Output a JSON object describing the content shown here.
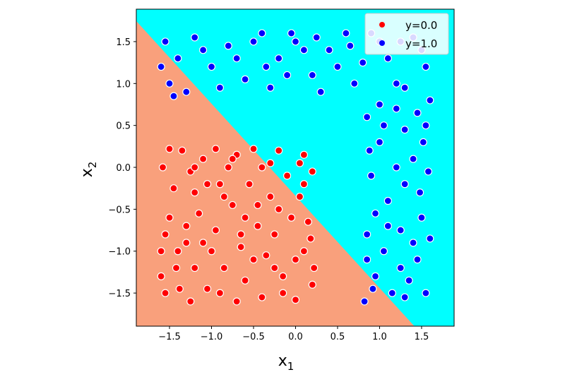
{
  "chart_data": {
    "type": "scatter",
    "title": "",
    "xlabel": "x",
    "xlabel_sub": "1",
    "ylabel": "x",
    "ylabel_sub": "2",
    "xlim": [
      -1.895,
      1.887
    ],
    "ylim": [
      -1.895,
      1.887
    ],
    "xticks": [
      -1.5,
      -1.0,
      -0.5,
      0.0,
      0.5,
      1.0,
      1.5
    ],
    "yticks": [
      -1.5,
      -1.0,
      -0.5,
      0.0,
      0.5,
      1.0,
      1.5
    ],
    "xtick_labels": [
      "−1.5",
      "−1.0",
      "−0.5",
      "0.0",
      "0.5",
      "1.0",
      "1.5"
    ],
    "ytick_labels": [
      "−1.5",
      "−1.0",
      "−0.5",
      "0.0",
      "0.5",
      "1.0",
      "1.5"
    ],
    "decision_boundary": {
      "slope": -1.1,
      "intercept": -0.34,
      "below_color": "#f9a07c",
      "above_color": "#00ffff"
    },
    "legend_position": "top-right",
    "series": [
      {
        "name": "y=0.0",
        "color": "#ff0000",
        "points": [
          [
            -1.55,
            -1.5
          ],
          [
            -1.42,
            -1.2
          ],
          [
            -1.3,
            -0.9
          ],
          [
            -1.5,
            -0.6
          ],
          [
            -1.2,
            -0.3
          ],
          [
            -1.58,
            0.0
          ],
          [
            -1.35,
            0.2
          ],
          [
            -1.1,
            0.1
          ],
          [
            -0.9,
            -0.2
          ],
          [
            -0.7,
            0.15
          ],
          [
            -0.5,
            0.22
          ],
          [
            -0.3,
            0.05
          ],
          [
            -0.1,
            -0.1
          ],
          [
            0.1,
            0.15
          ],
          [
            0.2,
            -0.05
          ],
          [
            0.05,
            -0.35
          ],
          [
            -0.2,
            -0.5
          ],
          [
            -0.45,
            -0.7
          ],
          [
            -0.65,
            -0.95
          ],
          [
            -0.85,
            -1.2
          ],
          [
            -1.05,
            -1.45
          ],
          [
            -1.25,
            -1.6
          ],
          [
            -0.4,
            -1.55
          ],
          [
            -0.15,
            -1.3
          ],
          [
            0.1,
            -1.0
          ],
          [
            0.2,
            -1.4
          ],
          [
            0.0,
            -1.58
          ],
          [
            -0.6,
            -1.35
          ],
          [
            -0.95,
            -0.75
          ],
          [
            -1.15,
            -0.55
          ],
          [
            -1.45,
            -0.25
          ],
          [
            -1.0,
            -1.0
          ],
          [
            -0.75,
            -0.45
          ],
          [
            -0.55,
            -0.2
          ],
          [
            -0.25,
            -0.8
          ],
          [
            0.15,
            -0.65
          ],
          [
            -1.6,
            -1.0
          ],
          [
            -1.38,
            -1.45
          ],
          [
            -0.8,
            0.0
          ],
          [
            -1.25,
            -0.05
          ],
          [
            -0.35,
            -1.05
          ],
          [
            -0.05,
            -0.6
          ],
          [
            0.22,
            -1.2
          ],
          [
            -0.7,
            -1.6
          ],
          [
            -1.5,
            0.22
          ],
          [
            -0.95,
            0.22
          ],
          [
            -0.2,
            0.2
          ],
          [
            0.05,
            0.05
          ],
          [
            -1.3,
            -0.7
          ],
          [
            -0.6,
            -0.6
          ],
          [
            -0.9,
            -1.5
          ],
          [
            -0.5,
            -1.1
          ],
          [
            -1.2,
            -1.2
          ],
          [
            -0.3,
            -0.35
          ],
          [
            0.1,
            -0.2
          ],
          [
            -1.55,
            -0.8
          ],
          [
            -1.05,
            -0.2
          ],
          [
            -0.4,
            0.0
          ],
          [
            -0.15,
            -1.5
          ],
          [
            0.18,
            -0.85
          ],
          [
            -1.4,
            -1.0
          ],
          [
            -0.85,
            -0.35
          ],
          [
            -0.65,
            -0.8
          ],
          [
            -0.25,
            -1.2
          ],
          [
            -1.1,
            -0.9
          ],
          [
            -0.45,
            -0.45
          ],
          [
            0.0,
            -1.1
          ],
          [
            -1.6,
            -1.3
          ],
          [
            -1.2,
            0.0
          ],
          [
            -0.75,
            0.1
          ]
        ]
      },
      {
        "name": "y=1.0",
        "color": "#0000ff",
        "points": [
          [
            -1.55,
            1.5
          ],
          [
            -1.4,
            1.3
          ],
          [
            -1.2,
            1.55
          ],
          [
            -1.0,
            1.2
          ],
          [
            -0.8,
            1.45
          ],
          [
            -0.6,
            1.05
          ],
          [
            -0.4,
            1.6
          ],
          [
            -0.2,
            1.3
          ],
          [
            0.0,
            1.5
          ],
          [
            0.2,
            1.1
          ],
          [
            0.4,
            1.4
          ],
          [
            0.6,
            1.6
          ],
          [
            0.8,
            1.25
          ],
          [
            1.0,
            1.5
          ],
          [
            1.2,
            1.0
          ],
          [
            1.4,
            1.55
          ],
          [
            1.55,
            1.2
          ],
          [
            -1.5,
            1.0
          ],
          [
            -1.3,
            0.9
          ],
          [
            -1.1,
            1.4
          ],
          [
            -0.9,
            0.95
          ],
          [
            -0.7,
            1.3
          ],
          [
            -0.5,
            1.5
          ],
          [
            -0.3,
            0.95
          ],
          [
            -0.1,
            1.1
          ],
          [
            0.1,
            1.4
          ],
          [
            0.3,
            0.9
          ],
          [
            0.5,
            1.2
          ],
          [
            0.7,
            1.0
          ],
          [
            0.9,
            1.6
          ],
          [
            1.1,
            1.3
          ],
          [
            1.3,
            0.95
          ],
          [
            1.5,
            1.4
          ],
          [
            -1.6,
            1.2
          ],
          [
            -0.05,
            1.6
          ],
          [
            0.65,
            1.45
          ],
          [
            -1.45,
            0.85
          ],
          [
            -0.35,
            1.2
          ],
          [
            0.25,
            1.55
          ],
          [
            1.25,
            1.5
          ],
          [
            0.85,
            0.6
          ],
          [
            1.0,
            0.3
          ],
          [
            1.2,
            0.7
          ],
          [
            1.4,
            0.1
          ],
          [
            1.55,
            0.5
          ],
          [
            0.9,
            -0.1
          ],
          [
            1.1,
            -0.4
          ],
          [
            1.3,
            -0.2
          ],
          [
            1.5,
            -0.6
          ],
          [
            0.85,
            -0.8
          ],
          [
            1.05,
            -1.0
          ],
          [
            1.25,
            -0.75
          ],
          [
            1.45,
            -1.1
          ],
          [
            0.95,
            -1.3
          ],
          [
            1.15,
            -1.5
          ],
          [
            1.35,
            -1.35
          ],
          [
            1.55,
            -1.5
          ],
          [
            0.82,
            -1.6
          ],
          [
            1.6,
            0.8
          ],
          [
            1.0,
            0.75
          ],
          [
            1.3,
            0.45
          ],
          [
            0.88,
            0.2
          ],
          [
            1.48,
            -0.3
          ],
          [
            1.2,
            0.0
          ],
          [
            0.95,
            -0.55
          ],
          [
            1.4,
            -0.9
          ],
          [
            1.58,
            -0.05
          ],
          [
            1.1,
            -0.7
          ],
          [
            0.85,
            -1.1
          ],
          [
            1.3,
            -1.55
          ],
          [
            1.52,
            0.3
          ],
          [
            1.05,
            0.5
          ],
          [
            1.25,
            -1.2
          ],
          [
            1.45,
            0.65
          ],
          [
            0.92,
            -1.45
          ],
          [
            1.6,
            -0.85
          ]
        ]
      }
    ]
  }
}
